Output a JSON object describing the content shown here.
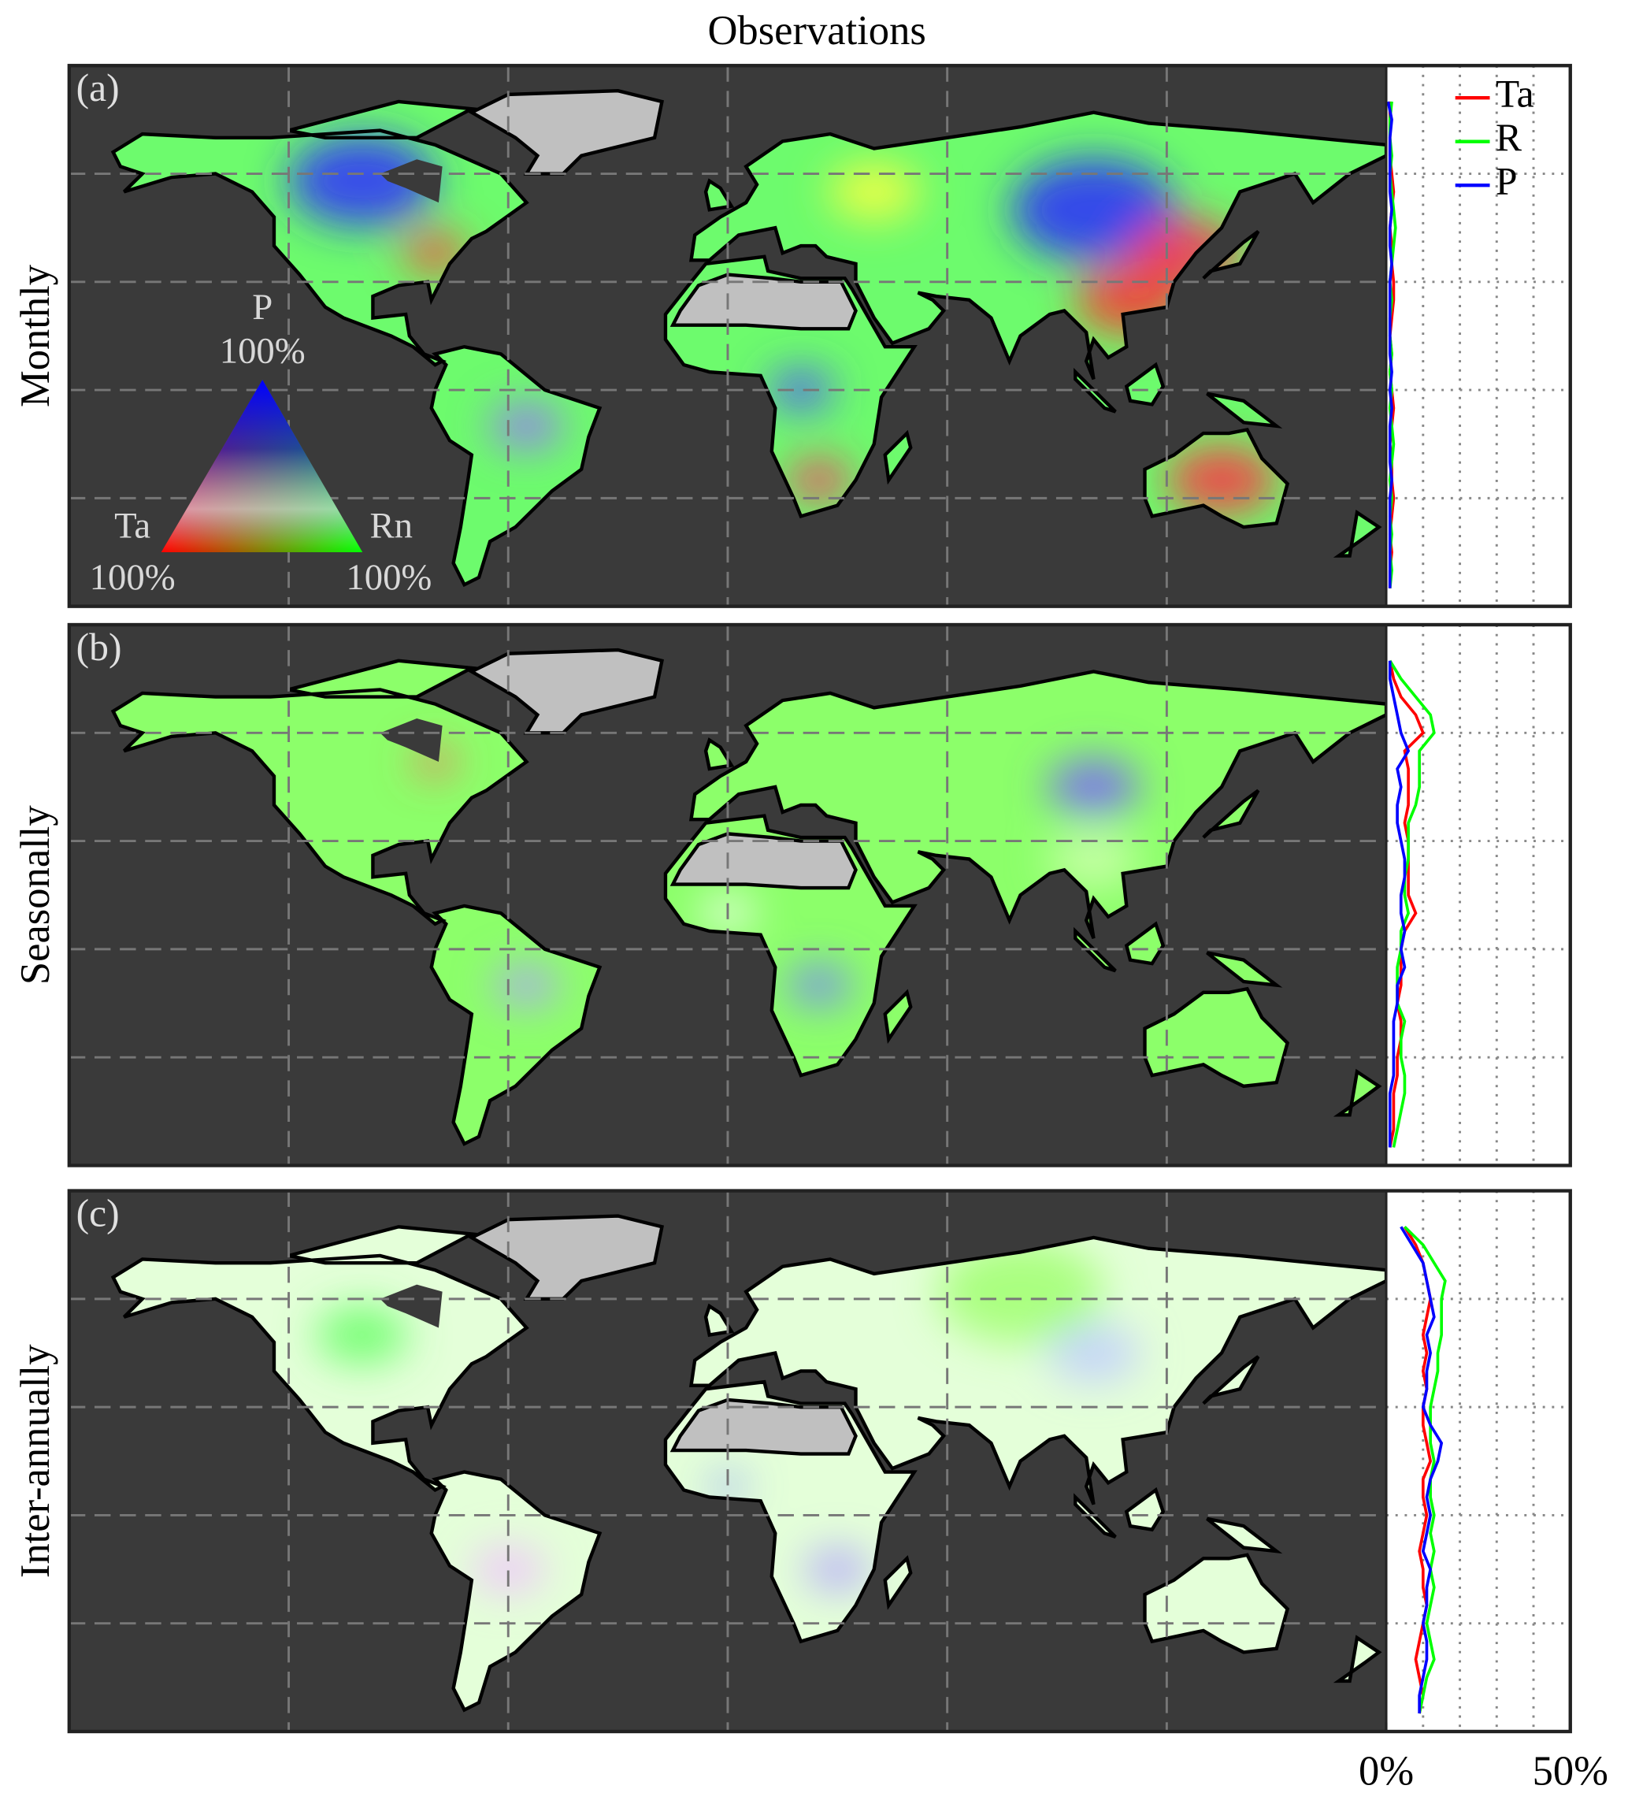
{
  "figure": {
    "title": "Observations",
    "ternary_legend": {
      "top": "P",
      "top_pct": "100%",
      "left": "Ta",
      "left_pct": "100%",
      "right": "Rn",
      "right_pct": "100%",
      "colors": [
        "#ff0000",
        "#00ff00",
        "#0000ff"
      ]
    },
    "map": {
      "lonlim": [
        -180,
        180
      ],
      "latlim": [
        -60,
        90
      ],
      "lon_grid": [
        -120,
        -60,
        0,
        60,
        120
      ],
      "lat_grid": [
        -30,
        0,
        30,
        60
      ]
    }
  },
  "chart_data": [
    {
      "type": "line",
      "panel_label": "(a)",
      "ylabel": "Monthly",
      "legend": "upper right",
      "y": [
        -55,
        -50,
        -45,
        -40,
        -35,
        -30,
        -25,
        -20,
        -15,
        -10,
        -5,
        0,
        5,
        10,
        15,
        20,
        25,
        30,
        35,
        40,
        45,
        50,
        55,
        60,
        65,
        70,
        75,
        80
      ],
      "xlim": [
        0,
        50
      ],
      "ylim": [
        -60,
        90
      ],
      "xgrid": [
        10,
        20,
        30,
        40
      ],
      "series": [
        {
          "name": "Ta",
          "color": "#ff0000",
          "values": [
            1,
            1,
            1.5,
            1,
            1.5,
            2,
            1.5,
            1.5,
            1,
            1.5,
            2,
            1.5,
            1,
            1.5,
            1,
            1.5,
            2,
            2,
            1.5,
            1.5,
            1,
            1.5,
            2,
            1.5,
            1,
            1,
            1,
            1
          ]
        },
        {
          "name": "R",
          "color": "#00ff00",
          "values": [
            1,
            1.5,
            1,
            1.5,
            1,
            1.5,
            1,
            1.5,
            2,
            1.5,
            1,
            1.5,
            1,
            1.5,
            1,
            1,
            1.5,
            1,
            1.5,
            2,
            2.5,
            2,
            1.5,
            1,
            1.5,
            1,
            1,
            1.5
          ]
        },
        {
          "name": "P",
          "color": "#0000ff",
          "values": [
            1,
            1,
            1,
            1,
            1,
            1,
            1.5,
            1,
            1,
            1,
            1.5,
            1,
            1.5,
            1,
            1,
            1,
            1,
            1,
            1.5,
            1,
            1,
            1.5,
            1,
            1,
            1,
            1,
            1.5,
            0.5
          ]
        }
      ]
    },
    {
      "type": "line",
      "panel_label": "(b)",
      "ylabel": "Seasonally",
      "y": [
        -55,
        -50,
        -45,
        -40,
        -35,
        -30,
        -25,
        -20,
        -15,
        -10,
        -5,
        0,
        5,
        10,
        15,
        20,
        25,
        30,
        35,
        40,
        45,
        50,
        55,
        60,
        65,
        70,
        75,
        80
      ],
      "xlim": [
        0,
        50
      ],
      "ylim": [
        -60,
        90
      ],
      "xgrid": [
        10,
        20,
        30,
        40
      ],
      "series": [
        {
          "color": "#ff0000",
          "values": [
            1,
            2,
            2,
            2,
            3,
            3,
            4,
            4,
            3,
            4,
            4,
            4,
            5,
            8,
            6,
            6,
            6,
            6,
            5,
            6,
            6,
            6,
            5,
            10,
            8,
            4,
            2,
            1
          ]
        },
        {
          "color": "#00ff00",
          "values": [
            2,
            3,
            4,
            5,
            5,
            4,
            4,
            5,
            3,
            3,
            3,
            4,
            4,
            6,
            5,
            5,
            6,
            6,
            6,
            8,
            9,
            9,
            9,
            13,
            12,
            8,
            4,
            1
          ]
        },
        {
          "color": "#0000ff",
          "values": [
            1,
            1,
            1,
            1,
            2,
            2,
            2,
            2,
            3,
            3,
            5,
            4,
            5,
            4,
            4,
            5,
            5,
            4,
            3,
            3,
            4,
            3,
            6,
            4,
            3,
            2,
            1,
            1
          ]
        }
      ]
    },
    {
      "type": "line",
      "panel_label": "(c)",
      "ylabel": "Inter-annually",
      "y": [
        -55,
        -50,
        -45,
        -40,
        -35,
        -30,
        -25,
        -20,
        -15,
        -10,
        -5,
        0,
        5,
        10,
        15,
        20,
        25,
        30,
        35,
        40,
        45,
        50,
        55,
        60,
        65,
        70,
        75,
        80
      ],
      "xlim": [
        0,
        50
      ],
      "ylim": [
        -60,
        90
      ],
      "xgrid": [
        10,
        20,
        30,
        40
      ],
      "xticks": [
        {
          "value": 0,
          "label": "0%"
        },
        {
          "value": 50,
          "label": "50%"
        }
      ],
      "series": [
        {
          "color": "#ff0000",
          "values": [
            9,
            10,
            9,
            8,
            9,
            10,
            11,
            10,
            10,
            9,
            10,
            11,
            10,
            10,
            12,
            11,
            10,
            10,
            11,
            10,
            11,
            10,
            11,
            12,
            11,
            10,
            8,
            5
          ]
        },
        {
          "color": "#00ff00",
          "values": [
            9,
            10,
            11,
            13,
            12,
            11,
            12,
            13,
            12,
            13,
            12,
            13,
            12,
            12,
            13,
            12,
            12,
            12,
            13,
            14,
            14,
            15,
            15,
            15,
            16,
            13,
            10,
            5
          ]
        },
        {
          "color": "#0000ff",
          "values": [
            9,
            9,
            10,
            11,
            11,
            10,
            11,
            11,
            12,
            10,
            11,
            12,
            11,
            12,
            14,
            15,
            12,
            10,
            11,
            11,
            12,
            11,
            13,
            12,
            11,
            10,
            7,
            4
          ]
        }
      ]
    }
  ]
}
